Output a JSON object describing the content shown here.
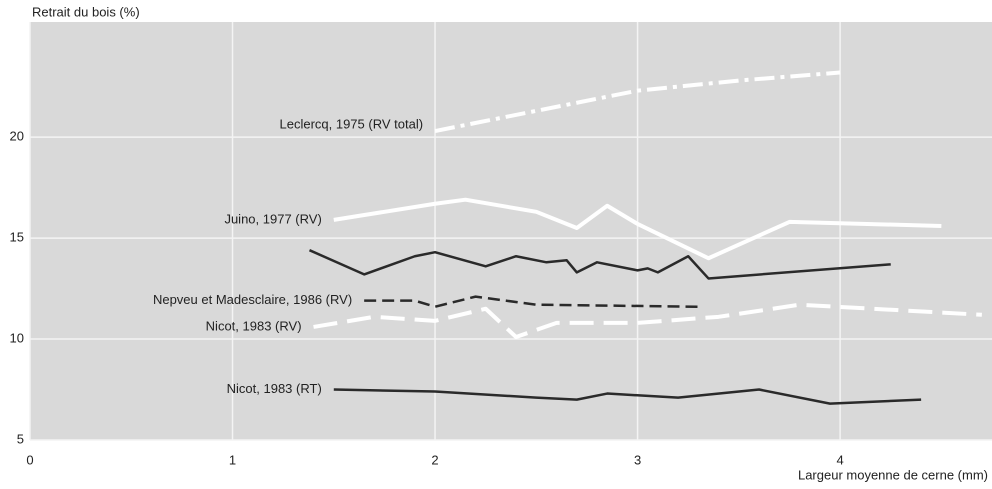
{
  "chart_data": {
    "type": "line",
    "ylabel": "Retrait du bois (%)",
    "xlabel": "Largeur moyenne de cerne (mm)",
    "xlim": [
      0,
      4.75
    ],
    "ylim": [
      5,
      25.7
    ],
    "xticks": [
      0,
      1,
      2,
      3,
      4
    ],
    "yticks": [
      5,
      10,
      15,
      20
    ],
    "grid": true,
    "series": [
      {
        "name": "Leclercq, 1975 (RV total)",
        "color": "#ffffff",
        "style": "dashdot",
        "x": [
          2.0,
          2.5,
          3.0,
          3.5,
          4.0
        ],
        "values": [
          20.3,
          21.3,
          22.3,
          22.8,
          23.2
        ]
      },
      {
        "name": "Juino, 1977 (RV)",
        "color": "#ffffff",
        "style": "solid",
        "x": [
          1.5,
          2.0,
          2.15,
          2.5,
          2.7,
          2.85,
          3.0,
          3.35,
          3.75,
          4.5
        ],
        "values": [
          15.9,
          16.7,
          16.9,
          16.3,
          15.5,
          16.6,
          15.7,
          14.0,
          15.8,
          15.6
        ]
      },
      {
        "color": "#2a2a2a",
        "style": "solid",
        "x": [
          1.38,
          1.65,
          1.9,
          2.0,
          2.25,
          2.4,
          2.55,
          2.65,
          2.7,
          2.8,
          3.0,
          3.05,
          3.1,
          3.25,
          3.35,
          4.25
        ],
        "values": [
          14.4,
          13.2,
          14.1,
          14.3,
          13.6,
          14.1,
          13.8,
          13.9,
          13.3,
          13.8,
          13.4,
          13.5,
          13.3,
          14.1,
          13.0,
          13.7
        ]
      },
      {
        "name": "Nepveu et Madesclaire, 1986 (RV)",
        "color": "#2a2a2a",
        "style": "dashed",
        "x": [
          1.65,
          1.9,
          2.0,
          2.2,
          2.5,
          3.3
        ],
        "values": [
          11.9,
          11.9,
          11.6,
          12.1,
          11.7,
          11.6
        ]
      },
      {
        "name": "Nicot, 1983 (RV)",
        "color": "#ffffff",
        "style": "longdash",
        "x": [
          1.4,
          1.7,
          2.0,
          2.25,
          2.4,
          2.6,
          3.0,
          3.4,
          3.8,
          4.7
        ],
        "values": [
          10.6,
          11.1,
          10.9,
          11.5,
          10.1,
          10.8,
          10.8,
          11.1,
          11.7,
          11.2
        ]
      },
      {
        "name": "Nicot, 1983 (RT)",
        "color": "#2a2a2a",
        "style": "solid",
        "x": [
          1.5,
          2.0,
          2.5,
          2.7,
          2.85,
          3.2,
          3.6,
          3.95,
          4.4
        ],
        "values": [
          7.5,
          7.4,
          7.1,
          7.0,
          7.3,
          7.1,
          7.5,
          6.8,
          7.0
        ]
      }
    ]
  }
}
